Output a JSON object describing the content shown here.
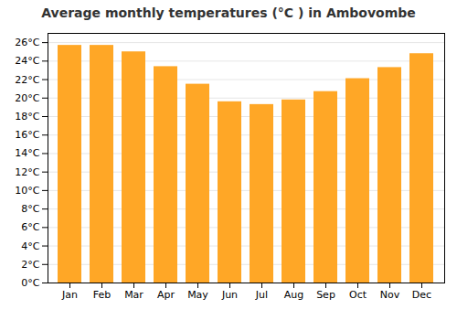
{
  "chart_data": {
    "type": "bar",
    "title": "Average monthly temperatures (°C ) in Ambovombe",
    "categories": [
      "Jan",
      "Feb",
      "Mar",
      "Apr",
      "May",
      "Jun",
      "Jul",
      "Aug",
      "Sep",
      "Oct",
      "Nov",
      "Dec"
    ],
    "values": [
      25.7,
      25.7,
      25.0,
      23.4,
      21.5,
      19.6,
      19.3,
      19.8,
      20.7,
      22.1,
      23.3,
      24.8
    ],
    "color": "#FFA726",
    "ylim": [
      0,
      27
    ],
    "yticks": [
      {
        "value": 0,
        "label": "0°C"
      },
      {
        "value": 2,
        "label": "2°C"
      },
      {
        "value": 4,
        "label": "4°C"
      },
      {
        "value": 6,
        "label": "6°C"
      },
      {
        "value": 8,
        "label": "8°C"
      },
      {
        "value": 10,
        "label": "10°C"
      },
      {
        "value": 12,
        "label": "12°C"
      },
      {
        "value": 14,
        "label": "14°C"
      },
      {
        "value": 16,
        "label": "16°C"
      },
      {
        "value": 18,
        "label": "18°C"
      },
      {
        "value": 20,
        "label": "20°C"
      },
      {
        "value": 22,
        "label": "22°C"
      },
      {
        "value": 24,
        "label": "24°C"
      },
      {
        "value": 26,
        "label": "26°C"
      }
    ],
    "grid": true
  }
}
